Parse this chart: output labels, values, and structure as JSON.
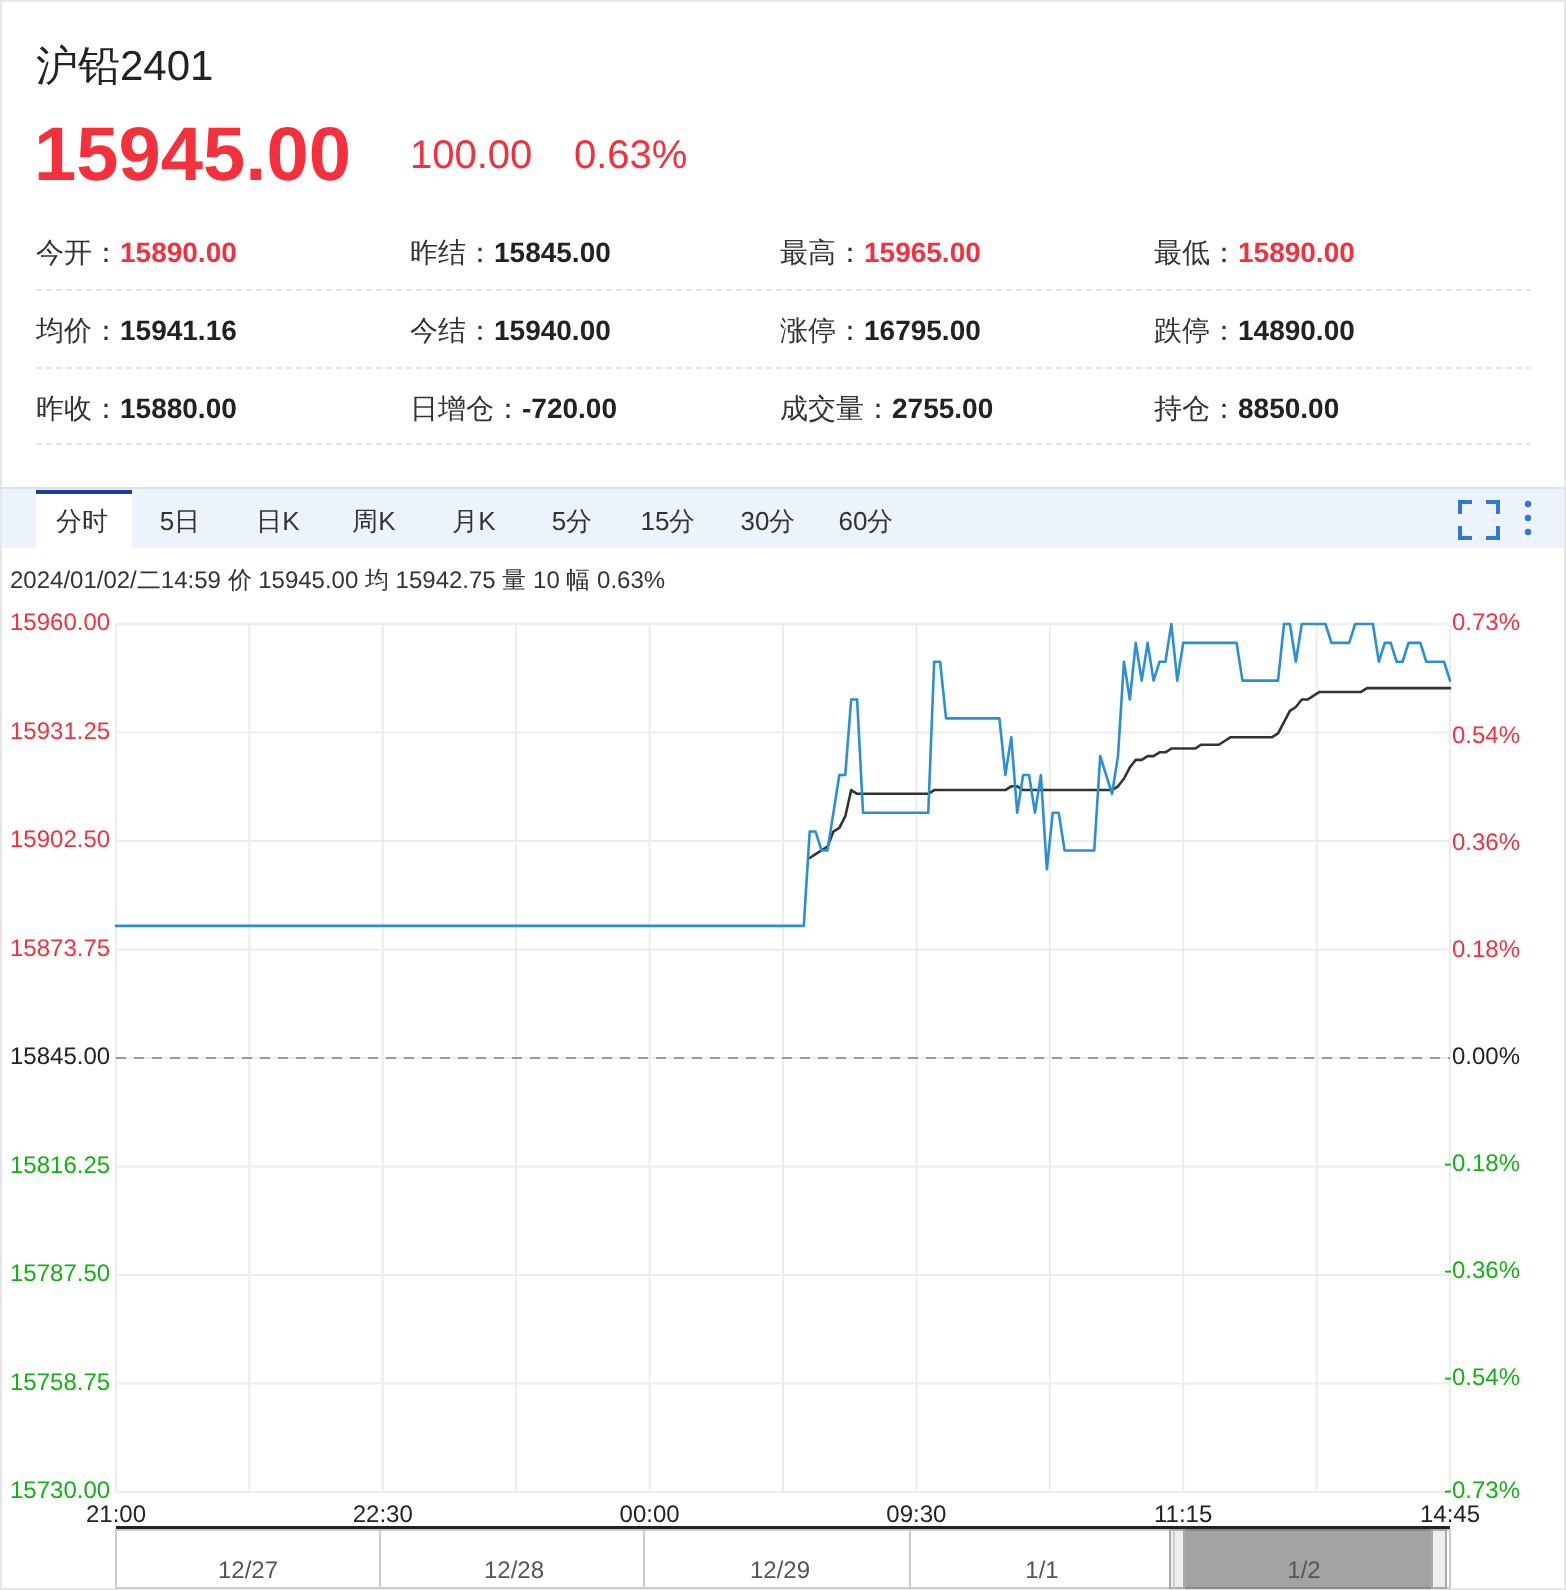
{
  "chart_data": {
    "type": "line",
    "title": "沪铅2401",
    "annotations": [
      "15945.00",
      "100.00",
      "0.63%",
      "今开：",
      "15890.00",
      "昨结：",
      "15845.00",
      "最高：",
      "15965.00",
      "最低：",
      "15890.00",
      "均价：",
      "15941.16",
      "今结：",
      "15940.00",
      "涨停：",
      "16795.00",
      "跌停：",
      "14890.00",
      "昨收：",
      "15880.00",
      "日增仓：",
      "-720.00",
      "成交量：",
      "2755.00",
      "持仓：",
      "8850.00",
      "分时",
      "5日",
      "日K",
      "周K",
      "月K",
      "5分",
      "15分",
      "30分",
      "60分",
      "2024/01/02/二14:59 价 15945.00 均 15942.75 量 10 幅 0.63%",
      "12/27",
      "12/28",
      "12/29",
      "1/1",
      "1/2"
    ],
    "categories": [
      "21:00",
      null,
      null,
      null,
      null,
      null,
      null,
      null,
      null,
      null,
      null,
      null,
      null,
      null,
      null,
      null,
      null,
      null,
      null,
      null,
      null,
      null,
      null,
      null,
      null,
      null,
      null,
      null,
      null,
      null,
      null,
      null,
      null,
      null,
      null,
      null,
      null,
      null,
      null,
      null,
      null,
      null,
      null,
      null,
      null,
      "22:30",
      null,
      null,
      null,
      null,
      null,
      null,
      null,
      null,
      null,
      null,
      null,
      null,
      null,
      null,
      null,
      null,
      null,
      null,
      null,
      null,
      null,
      null,
      null,
      null,
      null,
      null,
      null,
      null,
      null,
      null,
      null,
      null,
      null,
      null,
      null,
      null,
      null,
      null,
      null,
      null,
      null,
      null,
      null,
      null,
      "00:00",
      null,
      null,
      null,
      null,
      null,
      null,
      null,
      null,
      null,
      null,
      null,
      null,
      null,
      null,
      null,
      null,
      null,
      null,
      null,
      null,
      null,
      null,
      null,
      null,
      null,
      null,
      null,
      null,
      null,
      null,
      null,
      null,
      null,
      null,
      null,
      null,
      null,
      null,
      null,
      null,
      null,
      null,
      null,
      null,
      "09:30",
      null,
      null,
      null,
      null,
      null,
      null,
      null,
      null,
      null,
      null,
      null,
      null,
      null,
      null,
      null,
      null,
      null,
      null,
      null,
      null,
      null,
      null,
      null,
      null,
      null,
      null,
      null,
      null,
      null,
      null,
      null,
      null,
      null,
      null,
      null,
      null,
      null,
      null,
      null,
      null,
      null,
      null,
      null,
      null,
      "11:15",
      null,
      null,
      null,
      null,
      null,
      null,
      null,
      null,
      null,
      null,
      null,
      null,
      null,
      null,
      null,
      null,
      null,
      null,
      null,
      null,
      null,
      null,
      null,
      null,
      null,
      null,
      null,
      null,
      null,
      null,
      null,
      null,
      null,
      null,
      null,
      null,
      null,
      null,
      null,
      null,
      null,
      null,
      null,
      null,
      "14:45"
    ],
    "ylim": [
      15730,
      15960
    ],
    "yticks": [
      {
        "value": 15960,
        "label": "15960.00"
      },
      {
        "value": 15931.25,
        "label": "15931.25"
      },
      {
        "value": 15902.5,
        "label": "15902.50"
      },
      {
        "value": 15873.75,
        "label": "15873.75"
      },
      {
        "value": 15845,
        "label": "15845.00"
      },
      {
        "value": 15816.25,
        "label": "15816.25"
      },
      {
        "value": 15787.5,
        "label": "15787.50"
      },
      {
        "value": 15758.75,
        "label": "15758.75"
      },
      {
        "value": 15730,
        "label": "15730.00"
      }
    ],
    "y2lim": [
      -0.73,
      0.73
    ],
    "y2ticks": [
      {
        "value": 0.73,
        "label": "0.73%"
      },
      {
        "value": 0.54,
        "label": "0.54%"
      },
      {
        "value": 0.36,
        "label": "0.36%"
      },
      {
        "value": 0.18,
        "label": "0.18%"
      },
      {
        "value": 0,
        "label": "0.00%"
      },
      {
        "value": -0.18,
        "label": "-0.18%"
      },
      {
        "value": -0.36,
        "label": "-0.36%"
      },
      {
        "value": -0.54,
        "label": "-0.54%"
      },
      {
        "value": -0.73,
        "label": "-0.73%"
      }
    ],
    "grid": true,
    "ref_lines": [
      {
        "axis": "y",
        "value": 15845,
        "color": "#999999",
        "line_style": "dashed"
      }
    ],
    "series": [
      {
        "color": "#333333",
        "values": [
          null,
          null,
          null,
          null,
          null,
          null,
          null,
          null,
          null,
          null,
          null,
          null,
          null,
          null,
          null,
          null,
          null,
          null,
          null,
          null,
          null,
          null,
          null,
          null,
          null,
          null,
          null,
          null,
          null,
          null,
          null,
          null,
          null,
          null,
          null,
          null,
          null,
          null,
          null,
          null,
          null,
          null,
          null,
          null,
          null,
          null,
          null,
          null,
          null,
          null,
          null,
          null,
          null,
          null,
          null,
          null,
          null,
          null,
          null,
          null,
          null,
          null,
          null,
          null,
          null,
          null,
          null,
          null,
          null,
          null,
          null,
          null,
          null,
          null,
          null,
          null,
          null,
          null,
          null,
          null,
          null,
          null,
          null,
          null,
          null,
          null,
          null,
          null,
          null,
          null,
          null,
          null,
          null,
          null,
          null,
          null,
          null,
          null,
          null,
          null,
          null,
          null,
          null,
          null,
          null,
          null,
          null,
          null,
          null,
          null,
          null,
          null,
          null,
          null,
          null,
          null,
          null,
          15898,
          15899,
          15900,
          15901,
          15905,
          15906,
          15909,
          15916,
          15915,
          15915,
          15915,
          15915,
          15915,
          15915,
          15915,
          15915,
          15915,
          15915,
          15915,
          15915,
          15915,
          15916,
          15916,
          15916,
          15916,
          15916,
          15916,
          15916,
          15916,
          15916,
          15916,
          15916,
          15916,
          15916,
          15917,
          15917,
          15916,
          15916,
          15916,
          15916,
          15916,
          15916,
          15916,
          15916,
          15916,
          15916,
          15916,
          15916,
          15916,
          15916,
          15916,
          15916,
          15917,
          15919,
          15922,
          15924,
          15924,
          15925,
          15925,
          15926,
          15926,
          15927,
          15927,
          15927,
          15927,
          15927,
          15928,
          15928,
          15928,
          15928,
          15929,
          15930,
          15930,
          15930,
          15930,
          15930,
          15930,
          15930,
          15930,
          15931,
          15934,
          15937,
          15938,
          15940,
          15940,
          15941,
          15942,
          15942,
          15942,
          15942,
          15942,
          15942,
          15942,
          15942,
          15943,
          15943,
          15943,
          15943,
          15943,
          15943,
          15943,
          15943,
          15943,
          15943,
          15943,
          15943,
          15943,
          15943,
          15943
        ]
      },
      {
        "color": "#2b8fd8",
        "values": [
          15880,
          15880,
          15880,
          15880,
          15880,
          15880,
          15880,
          15880,
          15880,
          15880,
          15880,
          15880,
          15880,
          15880,
          15880,
          15880,
          15880,
          15880,
          15880,
          15880,
          15880,
          15880,
          15880,
          15880,
          15880,
          15880,
          15880,
          15880,
          15880,
          15880,
          15880,
          15880,
          15880,
          15880,
          15880,
          15880,
          15880,
          15880,
          15880,
          15880,
          15880,
          15880,
          15880,
          15880,
          15880,
          15880,
          15880,
          15880,
          15880,
          15880,
          15880,
          15880,
          15880,
          15880,
          15880,
          15880,
          15880,
          15880,
          15880,
          15880,
          15880,
          15880,
          15880,
          15880,
          15880,
          15880,
          15880,
          15880,
          15880,
          15880,
          15880,
          15880,
          15880,
          15880,
          15880,
          15880,
          15880,
          15880,
          15880,
          15880,
          15880,
          15880,
          15880,
          15880,
          15880,
          15880,
          15880,
          15880,
          15880,
          15880,
          15880,
          15880,
          15880,
          15880,
          15880,
          15880,
          15880,
          15880,
          15880,
          15880,
          15880,
          15880,
          15880,
          15880,
          15880,
          15880,
          15880,
          15880,
          15880,
          15880,
          15880,
          15880,
          15880,
          15880,
          15880,
          15880,
          15880,
          15905,
          15905,
          15900,
          15900,
          15910,
          15920,
          15920,
          15940,
          15940,
          15910,
          15910,
          15910,
          15910,
          15910,
          15910,
          15910,
          15910,
          15910,
          15910,
          15910,
          15910,
          15950,
          15950,
          15935,
          15935,
          15935,
          15935,
          15935,
          15935,
          15935,
          15935,
          15935,
          15935,
          15920,
          15930,
          15910,
          15920,
          15920,
          15910,
          15920,
          15895,
          15910,
          15910,
          15900,
          15900,
          15900,
          15900,
          15900,
          15900,
          15925,
          15920,
          15915,
          15925,
          15950,
          15940,
          15955,
          15945,
          15955,
          15945,
          15950,
          15950,
          15960,
          15945,
          15955,
          15955,
          15955,
          15955,
          15955,
          15955,
          15955,
          15955,
          15955,
          15955,
          15945,
          15945,
          15945,
          15945,
          15945,
          15945,
          15945,
          15960,
          15960,
          15950,
          15960,
          15960,
          15960,
          15960,
          15960,
          15955,
          15955,
          15955,
          15955,
          15960,
          15960,
          15960,
          15960,
          15950,
          15955,
          15955,
          15950,
          15950,
          15955,
          15955,
          15955,
          15950,
          15950,
          15950,
          15950,
          15945
        ]
      }
    ]
  }
}
